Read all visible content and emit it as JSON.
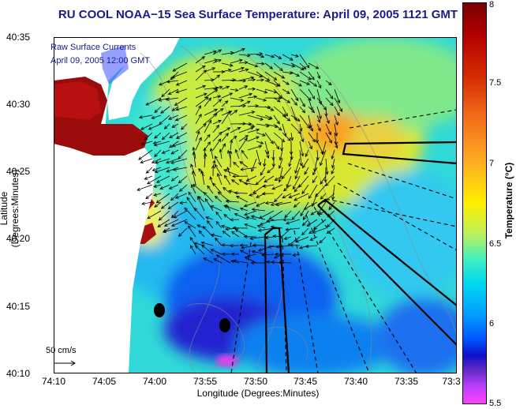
{
  "title": "RU COOL  NOAA−15  Sea Surface Temperature:  April 09, 2005 1121 GMT",
  "legend": {
    "line1": "Raw Surface Currents",
    "line2": "April 09, 2005 12:00 GMT"
  },
  "axes": {
    "xlabel": "Longitude (Degrees:Minutes)",
    "ylabel": "Latitude (Degrees:Minutes)",
    "xticks": [
      "74:10",
      "74:05",
      "74:00",
      "73:55",
      "73:50",
      "73:45",
      "73:40",
      "73:35",
      "73:3"
    ],
    "yticks": [
      "40:35",
      "40:30",
      "40:25",
      "40:20",
      "40:15",
      "40:10"
    ]
  },
  "colorbar": {
    "label": "Temperature (°C)",
    "ticks": [
      "8",
      "7.5",
      "7",
      "6.5",
      "6",
      "5.5"
    ]
  },
  "scale_arrow_label": "50 cm/s",
  "colors": {
    "land": "#ffffff",
    "title": "#1a1a8c",
    "shipping_lanes": "#000000"
  }
}
